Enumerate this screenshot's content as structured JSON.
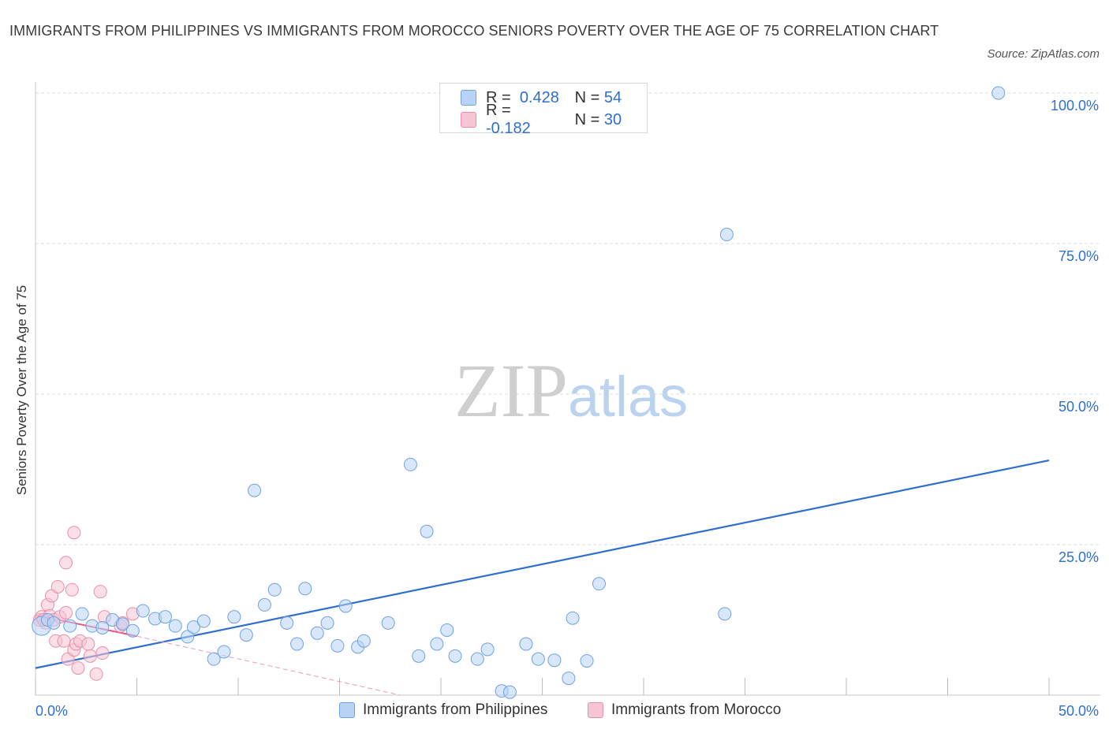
{
  "title": "IMMIGRANTS FROM PHILIPPINES VS IMMIGRANTS FROM MOROCCO SENIORS POVERTY OVER THE AGE OF 75 CORRELATION CHART",
  "source": "Source: ZipAtlas.com",
  "watermark": {
    "zip": "ZIP",
    "atlas": "atlas"
  },
  "colors": {
    "blue": "#2f6fce",
    "blue_fill": "#b8d3f5",
    "pink": "#e8588a",
    "pink_fill": "#f8c5d4"
  },
  "legend": {
    "row1": {
      "r_label": "R =",
      "r_value": "0.428",
      "n_label": "N =",
      "n_value": "54"
    },
    "row2": {
      "r_label": "R =",
      "r_value": "-0.182",
      "n_label": "N =",
      "n_value": "30"
    }
  },
  "bottom_legend": {
    "series1": "Immigrants from Philippines",
    "series2": "Immigrants from Morocco"
  },
  "chart_data": {
    "type": "scatter",
    "title": "IMMIGRANTS FROM PHILIPPINES VS IMMIGRANTS FROM MOROCCO SENIORS POVERTY OVER THE AGE OF 75 CORRELATION CHART",
    "xlabel": "",
    "ylabel": "Seniors Poverty Over the Age of 75",
    "xlim": [
      0,
      50
    ],
    "ylim": [
      0,
      100
    ],
    "x_tick_labels": [
      "0.0%",
      "50.0%"
    ],
    "y_tick_values": [
      25,
      50,
      75,
      100
    ],
    "y_tick_labels": [
      "25.0%",
      "50.0%",
      "75.0%",
      "100.0%"
    ],
    "grid": true,
    "series": [
      {
        "name": "Immigrants from Philippines",
        "r": 0.428,
        "n": 54,
        "trend": {
          "x0": 0,
          "y0": 4.5,
          "x1": 50,
          "y1": 39.0
        },
        "points": [
          {
            "x": 0.3,
            "y": 11.5
          },
          {
            "x": 0.6,
            "y": 12.5
          },
          {
            "x": 0.9,
            "y": 12.0
          },
          {
            "x": 1.7,
            "y": 11.5
          },
          {
            "x": 2.3,
            "y": 13.5
          },
          {
            "x": 2.8,
            "y": 11.5
          },
          {
            "x": 3.3,
            "y": 11.2
          },
          {
            "x": 3.8,
            "y": 12.5
          },
          {
            "x": 4.3,
            "y": 11.8
          },
          {
            "x": 4.8,
            "y": 10.7
          },
          {
            "x": 5.3,
            "y": 14.0
          },
          {
            "x": 5.9,
            "y": 12.7
          },
          {
            "x": 6.4,
            "y": 13.0
          },
          {
            "x": 6.9,
            "y": 11.5
          },
          {
            "x": 7.5,
            "y": 9.7
          },
          {
            "x": 7.8,
            "y": 11.3
          },
          {
            "x": 8.3,
            "y": 12.3
          },
          {
            "x": 8.8,
            "y": 6.0
          },
          {
            "x": 9.3,
            "y": 7.2
          },
          {
            "x": 9.8,
            "y": 13.0
          },
          {
            "x": 10.4,
            "y": 10.0
          },
          {
            "x": 10.8,
            "y": 34.0
          },
          {
            "x": 11.3,
            "y": 15.0
          },
          {
            "x": 11.8,
            "y": 17.5
          },
          {
            "x": 12.4,
            "y": 12.0
          },
          {
            "x": 12.9,
            "y": 8.5
          },
          {
            "x": 13.3,
            "y": 17.7
          },
          {
            "x": 13.9,
            "y": 10.3
          },
          {
            "x": 14.4,
            "y": 12.0
          },
          {
            "x": 14.9,
            "y": 8.2
          },
          {
            "x": 15.3,
            "y": 14.8
          },
          {
            "x": 15.9,
            "y": 8.0
          },
          {
            "x": 16.2,
            "y": 9.0
          },
          {
            "x": 17.4,
            "y": 12.0
          },
          {
            "x": 18.5,
            "y": 38.3
          },
          {
            "x": 18.9,
            "y": 6.5
          },
          {
            "x": 19.3,
            "y": 27.2
          },
          {
            "x": 19.8,
            "y": 8.5
          },
          {
            "x": 20.3,
            "y": 10.8
          },
          {
            "x": 20.7,
            "y": 6.5
          },
          {
            "x": 21.8,
            "y": 6.0
          },
          {
            "x": 22.3,
            "y": 7.6
          },
          {
            "x": 23.0,
            "y": 0.7
          },
          {
            "x": 23.4,
            "y": 0.5
          },
          {
            "x": 24.2,
            "y": 8.5
          },
          {
            "x": 24.8,
            "y": 6.0
          },
          {
            "x": 25.6,
            "y": 5.8
          },
          {
            "x": 26.3,
            "y": 2.8
          },
          {
            "x": 26.5,
            "y": 12.8
          },
          {
            "x": 27.2,
            "y": 5.7
          },
          {
            "x": 27.8,
            "y": 18.5
          },
          {
            "x": 34.0,
            "y": 13.5
          },
          {
            "x": 34.1,
            "y": 76.5
          },
          {
            "x": 47.5,
            "y": 100.0
          }
        ]
      },
      {
        "name": "Immigrants from Morocco",
        "r": -0.182,
        "n": 30,
        "trend_solid": {
          "x0": 0,
          "y0": 13.3,
          "x1": 5.0,
          "y1": 9.8
        },
        "trend_dashed": {
          "x0": 5.0,
          "y0": 9.8,
          "x1": 18.0,
          "y1": 0.0
        },
        "points": [
          {
            "x": 0.2,
            "y": 12.5
          },
          {
            "x": 0.3,
            "y": 13.0
          },
          {
            "x": 0.5,
            "y": 12.0
          },
          {
            "x": 0.6,
            "y": 15.0
          },
          {
            "x": 0.7,
            "y": 13.2
          },
          {
            "x": 0.8,
            "y": 16.5
          },
          {
            "x": 0.9,
            "y": 12.5
          },
          {
            "x": 1.0,
            "y": 9.0
          },
          {
            "x": 1.1,
            "y": 18.0
          },
          {
            "x": 1.2,
            "y": 13.0
          },
          {
            "x": 1.4,
            "y": 9.0
          },
          {
            "x": 1.5,
            "y": 13.7
          },
          {
            "x": 1.5,
            "y": 22.0
          },
          {
            "x": 1.6,
            "y": 6.0
          },
          {
            "x": 1.8,
            "y": 17.5
          },
          {
            "x": 1.9,
            "y": 7.5
          },
          {
            "x": 1.9,
            "y": 27.0
          },
          {
            "x": 2.0,
            "y": 8.5
          },
          {
            "x": 2.1,
            "y": 4.5
          },
          {
            "x": 2.2,
            "y": 9.0
          },
          {
            "x": 2.6,
            "y": 8.5
          },
          {
            "x": 2.7,
            "y": 6.5
          },
          {
            "x": 3.0,
            "y": 3.5
          },
          {
            "x": 3.2,
            "y": 17.2
          },
          {
            "x": 3.3,
            "y": 7.0
          },
          {
            "x": 3.4,
            "y": 13.0
          },
          {
            "x": 4.2,
            "y": 11.5
          },
          {
            "x": 4.3,
            "y": 12.0
          },
          {
            "x": 4.8,
            "y": 13.5
          },
          {
            "x": 0.4,
            "y": 12.5
          }
        ]
      }
    ]
  }
}
